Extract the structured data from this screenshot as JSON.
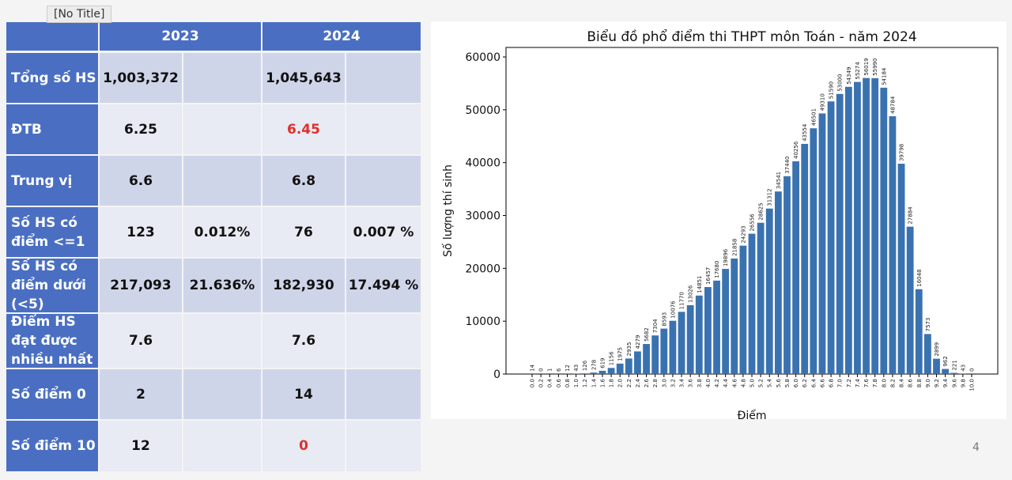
{
  "tooltip": "[No Title]",
  "table": {
    "headers": [
      "",
      "2023",
      "2024"
    ],
    "rows": [
      {
        "label": "Tổng số HS",
        "c1": "1,003,372",
        "c2": "",
        "c3": "1,045,643",
        "c4": ""
      },
      {
        "label": "ĐTB",
        "c1": "6.25",
        "c2": "",
        "c3": "6.45",
        "c4": ""
      },
      {
        "label": "Trung vị",
        "c1": "6.6",
        "c2": "",
        "c3": "6.8",
        "c4": ""
      },
      {
        "label": "Số HS có điểm <=1",
        "c1": "123",
        "c2": "0.012%",
        "c3": "76",
        "c4": "0.007 %"
      },
      {
        "label": "Số HS có điểm dưới (<5)",
        "c1": "217,093",
        "c2": "21.636%",
        "c3": "182,930",
        "c4": "17.494 %"
      },
      {
        "label": "Điểm HS đạt được nhiều nhất",
        "c1": "7.6",
        "c2": "",
        "c3": "7.6",
        "c4": ""
      },
      {
        "label": "Số điểm 0",
        "c1": "2",
        "c2": "",
        "c3": "14",
        "c4": ""
      },
      {
        "label": "Số điểm 10",
        "c1": "12",
        "c2": "",
        "c3": "0",
        "c4": ""
      }
    ],
    "highlight_color": "#e0302a"
  },
  "page_number": "4",
  "chart_data": {
    "type": "bar",
    "title": "Biểu đồ phổ điểm thi THPT môn Toán - năm 2024",
    "xlabel": "Điểm",
    "ylabel": "Số lượng thí sinh",
    "ylim": [
      0,
      61800
    ],
    "yticks": [
      0,
      10000,
      20000,
      30000,
      40000,
      50000,
      60000
    ],
    "bar_color": "#3a72b0",
    "categories": [
      "0.0",
      "0.2",
      "0.4",
      "0.6",
      "0.8",
      "1.0",
      "1.2",
      "1.4",
      "1.6",
      "1.8",
      "2.0",
      "2.2",
      "2.4",
      "2.6",
      "2.8",
      "3.0",
      "3.2",
      "3.4",
      "3.6",
      "3.8",
      "4.0",
      "4.2",
      "4.4",
      "4.6",
      "4.8",
      "5.0",
      "5.2",
      "5.4",
      "5.6",
      "5.8",
      "6.0",
      "6.2",
      "6.4",
      "6.6",
      "6.8",
      "7.0",
      "7.2",
      "7.4",
      "7.6",
      "7.8",
      "8.0",
      "8.2",
      "8.4",
      "8.6",
      "8.8",
      "9.0",
      "9.2",
      "9.4",
      "9.6",
      "9.8",
      "10.0"
    ],
    "values": [
      14,
      0,
      1,
      6,
      12,
      43,
      126,
      278,
      619,
      1156,
      1975,
      2935,
      4279,
      5682,
      7304,
      8593,
      10076,
      11770,
      13026,
      14851,
      16457,
      17680,
      19896,
      21858,
      24293,
      26556,
      28625,
      31312,
      34541,
      37440,
      40256,
      43554,
      46501,
      49310,
      51590,
      53000,
      54349,
      55274,
      56019,
      55990,
      54184,
      48784,
      39798,
      27884,
      16048,
      7573,
      2899,
      962,
      221,
      43,
      0
    ]
  }
}
